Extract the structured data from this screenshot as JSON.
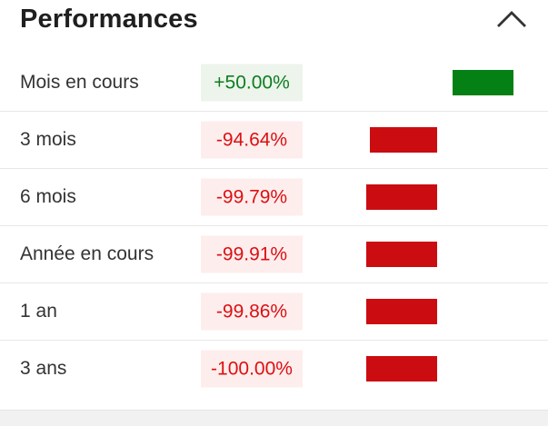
{
  "panel": {
    "title": "Performances",
    "collapse_icon": "chevron-up"
  },
  "colors": {
    "positive_text": "#0e7d20",
    "positive_bar": "#048014",
    "positive_badge_bg": "#edf4ec",
    "negative_text": "#dc1013",
    "negative_bar": "#cb0c11",
    "negative_badge_bg": "#fdeeed",
    "label_text": "#333333",
    "separator": "#e7e7e7"
  },
  "chart_data": {
    "type": "bar",
    "orientation": "horizontal",
    "categories": [
      "Mois en cours",
      "3 mois",
      "6 mois",
      "Année en cours",
      "1 an",
      "3 ans"
    ],
    "values": [
      50.0,
      -94.64,
      -99.79,
      -99.91,
      -99.86,
      -100.0
    ],
    "title": "Performances",
    "unit": "%"
  },
  "rows": [
    {
      "label": "Mois en cours",
      "value": 50.0,
      "value_label": "+50.00%",
      "direction": "positive"
    },
    {
      "label": "3 mois",
      "value": -94.64,
      "value_label": "-94.64%",
      "direction": "negative"
    },
    {
      "label": "6 mois",
      "value": -99.79,
      "value_label": "-99.79%",
      "direction": "negative"
    },
    {
      "label": "Année en cours",
      "value": -99.91,
      "value_label": "-99.91%",
      "direction": "negative"
    },
    {
      "label": "1 an",
      "value": -99.86,
      "value_label": "-99.86%",
      "direction": "negative"
    },
    {
      "label": "3 ans",
      "value": -100.0,
      "value_label": "-100.00%",
      "direction": "negative"
    }
  ]
}
